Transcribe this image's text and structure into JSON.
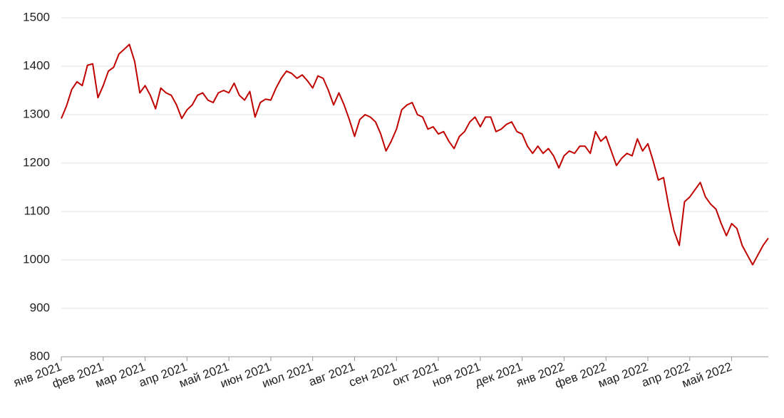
{
  "chart_data": {
    "type": "line",
    "categories": [
      "янв 2021",
      null,
      null,
      null,
      null,
      null,
      null,
      null,
      "фев 2021",
      null,
      null,
      null,
      null,
      null,
      null,
      null,
      "мар 2021",
      null,
      null,
      null,
      null,
      null,
      null,
      null,
      "апр 2021",
      null,
      null,
      null,
      null,
      null,
      null,
      null,
      "май 2021",
      null,
      null,
      null,
      null,
      null,
      null,
      null,
      "июн 2021",
      null,
      null,
      null,
      null,
      null,
      null,
      null,
      "июл 2021",
      null,
      null,
      null,
      null,
      null,
      null,
      null,
      "авг 2021",
      null,
      null,
      null,
      null,
      null,
      null,
      null,
      "сен 2021",
      null,
      null,
      null,
      null,
      null,
      null,
      null,
      "окт 2021",
      null,
      null,
      null,
      null,
      null,
      null,
      null,
      "ноя 2021",
      null,
      null,
      null,
      null,
      null,
      null,
      null,
      "дек 2021",
      null,
      null,
      null,
      null,
      null,
      null,
      null,
      "янв 2022",
      null,
      null,
      null,
      null,
      null,
      null,
      null,
      "фев 2022",
      null,
      null,
      null,
      null,
      null,
      null,
      null,
      "мар 2022",
      null,
      null,
      null,
      null,
      null,
      null,
      null,
      "апр 2022",
      null,
      null,
      null,
      null,
      null,
      null,
      null,
      "май 2022",
      null,
      null,
      null,
      null,
      null,
      null,
      null
    ],
    "series": [
      {
        "color": "#c00000",
        "values": [
          1292,
          1318,
          1352,
          1368,
          1360,
          1402,
          1405,
          1335,
          1360,
          1390,
          1398,
          1425,
          1435,
          1445,
          1410,
          1345,
          1360,
          1340,
          1312,
          1355,
          1345,
          1340,
          1320,
          1292,
          1310,
          1320,
          1340,
          1345,
          1330,
          1325,
          1345,
          1350,
          1345,
          1365,
          1340,
          1330,
          1348,
          1295,
          1325,
          1332,
          1330,
          1355,
          1375,
          1390,
          1385,
          1375,
          1382,
          1370,
          1355,
          1380,
          1375,
          1350,
          1320,
          1345,
          1320,
          1290,
          1255,
          1290,
          1300,
          1295,
          1285,
          1260,
          1225,
          1245,
          1270,
          1310,
          1320,
          1325,
          1300,
          1295,
          1270,
          1275,
          1260,
          1265,
          1245,
          1230,
          1255,
          1265,
          1285,
          1295,
          1275,
          1295,
          1295,
          1265,
          1270,
          1280,
          1285,
          1265,
          1260,
          1235,
          1220,
          1235,
          1220,
          1230,
          1215,
          1190,
          1215,
          1225,
          1220,
          1235,
          1235,
          1220,
          1265,
          1245,
          1255,
          1225,
          1195,
          1210,
          1220,
          1215,
          1250,
          1225,
          1240,
          1205,
          1165,
          1170,
          1110,
          1060,
          1030,
          1120,
          1130,
          1145,
          1160,
          1130,
          1115,
          1105,
          1075,
          1050,
          1075,
          1065,
          1030,
          1010,
          990,
          1010,
          1030,
          1045
        ]
      }
    ],
    "ylim": [
      800,
      1500
    ],
    "yticks": [
      800,
      900,
      1000,
      1100,
      1200,
      1300,
      1400,
      1500
    ],
    "grid": true
  }
}
